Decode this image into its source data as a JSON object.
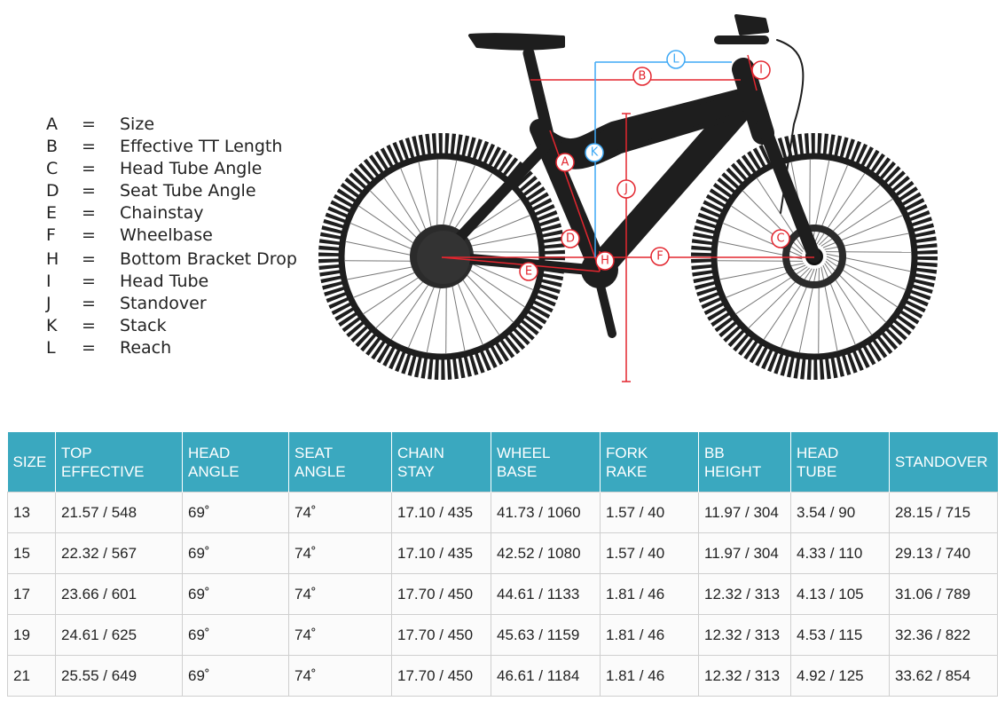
{
  "colors": {
    "red": "#e3262f",
    "blue": "#3fa9f5",
    "header_bg": "#3aa8bf",
    "bike": "#1e1e1e"
  },
  "legend": [
    {
      "key": "A",
      "label": "Size",
      "color": "red"
    },
    {
      "key": "B",
      "label": "Effective TT Length",
      "color": "red"
    },
    {
      "key": "C",
      "label": "Head Tube Angle",
      "color": "red"
    },
    {
      "key": "D",
      "label": "Seat Tube Angle",
      "color": "red"
    },
    {
      "key": "E",
      "label": "Chainstay",
      "color": "red"
    },
    {
      "key": "F",
      "label": "Wheelbase",
      "color": "red"
    },
    {
      "key": "H",
      "label": "Bottom Bracket Drop",
      "color": "red"
    },
    {
      "key": "I",
      "label": "Head Tube",
      "color": "red"
    },
    {
      "key": "J",
      "label": "Standover",
      "color": "red"
    },
    {
      "key": "K",
      "label": "Stack",
      "color": "blue"
    },
    {
      "key": "L",
      "label": "Reach",
      "color": "blue"
    }
  ],
  "legend_sep": "=",
  "diagram_labels": {
    "A": "A",
    "B": "B",
    "C": "C",
    "D": "D",
    "E": "E",
    "F": "F",
    "H": "H",
    "I": "I",
    "J": "J",
    "K": "K",
    "L": "L"
  },
  "table": {
    "headers": [
      [
        "SIZE"
      ],
      [
        "TOP",
        "EFFECTIVE"
      ],
      [
        "HEAD",
        "ANGLE"
      ],
      [
        "SEAT",
        "ANGLE"
      ],
      [
        "CHAIN",
        "STAY"
      ],
      [
        "WHEEL",
        "BASE"
      ],
      [
        "FORK",
        "RAKE"
      ],
      [
        "BB",
        "HEIGHT"
      ],
      [
        "HEAD",
        "TUBE"
      ],
      [
        "STANDOVER"
      ]
    ],
    "rows": [
      [
        "13",
        "21.57 / 548",
        "69˚",
        "74˚",
        "17.10 / 435",
        "41.73 / 1060",
        "1.57 / 40",
        "11.97 / 304",
        "3.54 / 90",
        "28.15 / 715"
      ],
      [
        "15",
        "22.32 / 567",
        "69˚",
        "74˚",
        "17.10 / 435",
        "42.52 / 1080",
        "1.57 / 40",
        "11.97 / 304",
        "4.33 / 110",
        "29.13 / 740"
      ],
      [
        "17",
        "23.66 / 601",
        "69˚",
        "74˚",
        "17.70 / 450",
        "44.61 / 1133",
        "1.81 / 46",
        "12.32 / 313",
        "4.13 / 105",
        "31.06 / 789"
      ],
      [
        "19",
        "24.61 / 625",
        "69˚",
        "74˚",
        "17.70 / 450",
        "45.63 / 1159",
        "1.81 / 46",
        "12.32 / 313",
        "4.53 / 115",
        "32.36 / 822"
      ],
      [
        "21",
        "25.55 / 649",
        "69˚",
        "74˚",
        "17.70 / 450",
        "46.61 / 1184",
        "1.81 / 46",
        "12.32 / 313",
        "4.92 / 125",
        "33.62 / 854"
      ]
    ]
  }
}
